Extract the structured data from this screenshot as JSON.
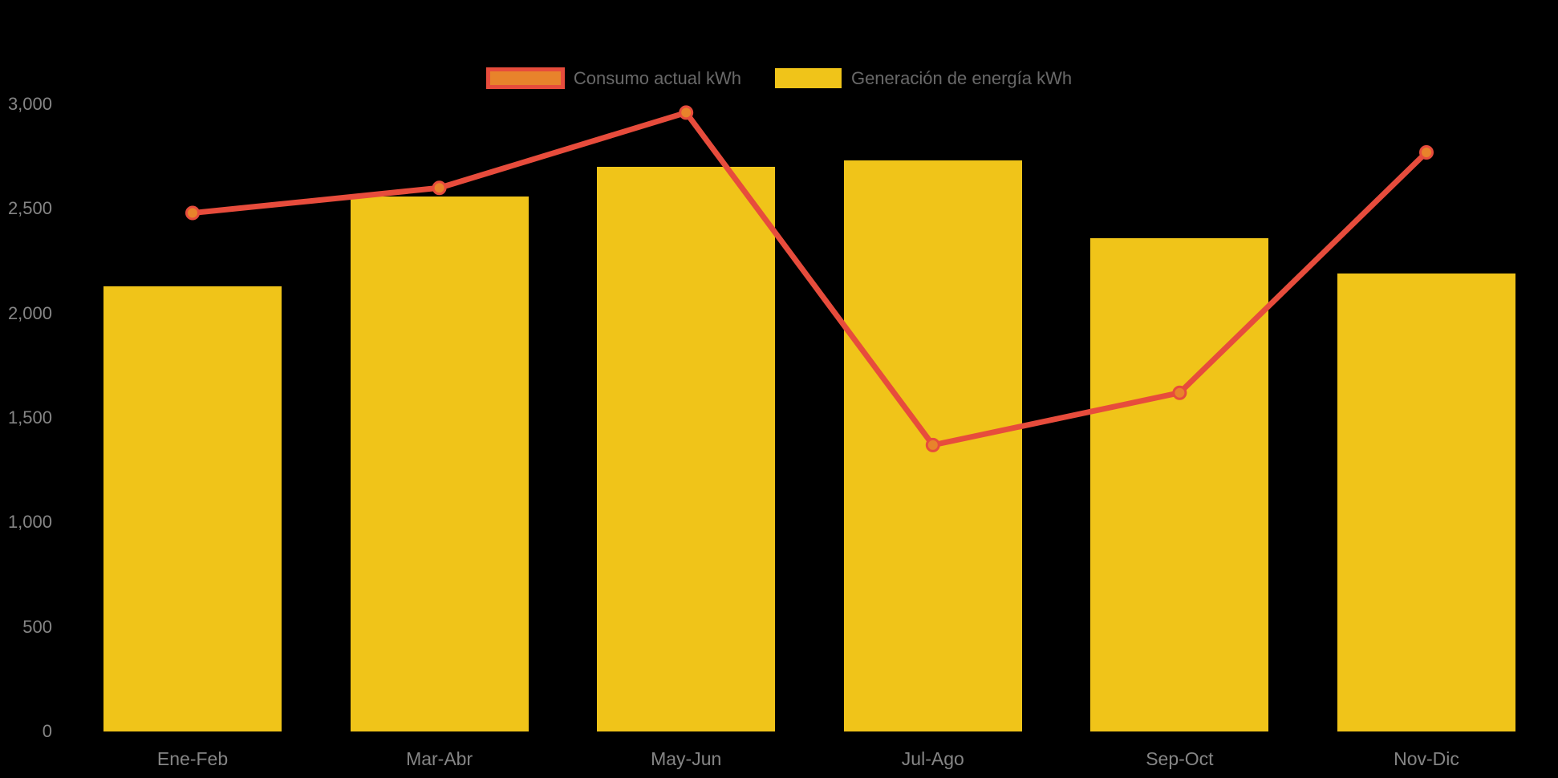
{
  "page": {
    "background_color": "#000000"
  },
  "legend": {
    "position": "top-center",
    "text_color": "#696969",
    "items": [
      {
        "label": "Consumo actual kWh",
        "series_kind": "line",
        "swatch_fill": "#E8832B",
        "swatch_border": "#E74C3C"
      },
      {
        "label": "Generación de energía kWh",
        "series_kind": "bar",
        "swatch_fill": "#F0C419",
        "swatch_border": null
      }
    ]
  },
  "axes": {
    "tick_text_color": "#858585",
    "y_ticks": [
      {
        "value": 0,
        "label": "0"
      },
      {
        "value": 500,
        "label": "500"
      },
      {
        "value": 1000,
        "label": "1,000"
      },
      {
        "value": 1500,
        "label": "1,500"
      },
      {
        "value": 2000,
        "label": "2,000"
      },
      {
        "value": 2500,
        "label": "2,500"
      },
      {
        "value": 3000,
        "label": "3,000"
      }
    ],
    "x_labels": [
      "Ene-Feb",
      "Mar-Abr",
      "May-Jun",
      "Jul-Ago",
      "Sep-Oct",
      "Nov-Dic"
    ]
  },
  "chart_data": {
    "type": "combo",
    "title": "",
    "xlabel": "",
    "ylabel": "",
    "categories": [
      "Ene-Feb",
      "Mar-Abr",
      "May-Jun",
      "Jul-Ago",
      "Sep-Oct",
      "Nov-Dic"
    ],
    "series": [
      {
        "name": "Generación de energía kWh",
        "type": "bar",
        "color": "#F0C419",
        "values": [
          2130,
          2560,
          2700,
          2730,
          2360,
          2190
        ]
      },
      {
        "name": "Consumo actual kWh",
        "type": "line",
        "color": "#E74C3C",
        "marker_fill": "#E8832B",
        "marker_stroke": "#E74C3C",
        "values": [
          2480,
          2600,
          2960,
          1370,
          1620,
          2770
        ]
      }
    ],
    "ylim": [
      0,
      3000
    ],
    "grid": false,
    "legend_position": "top"
  }
}
